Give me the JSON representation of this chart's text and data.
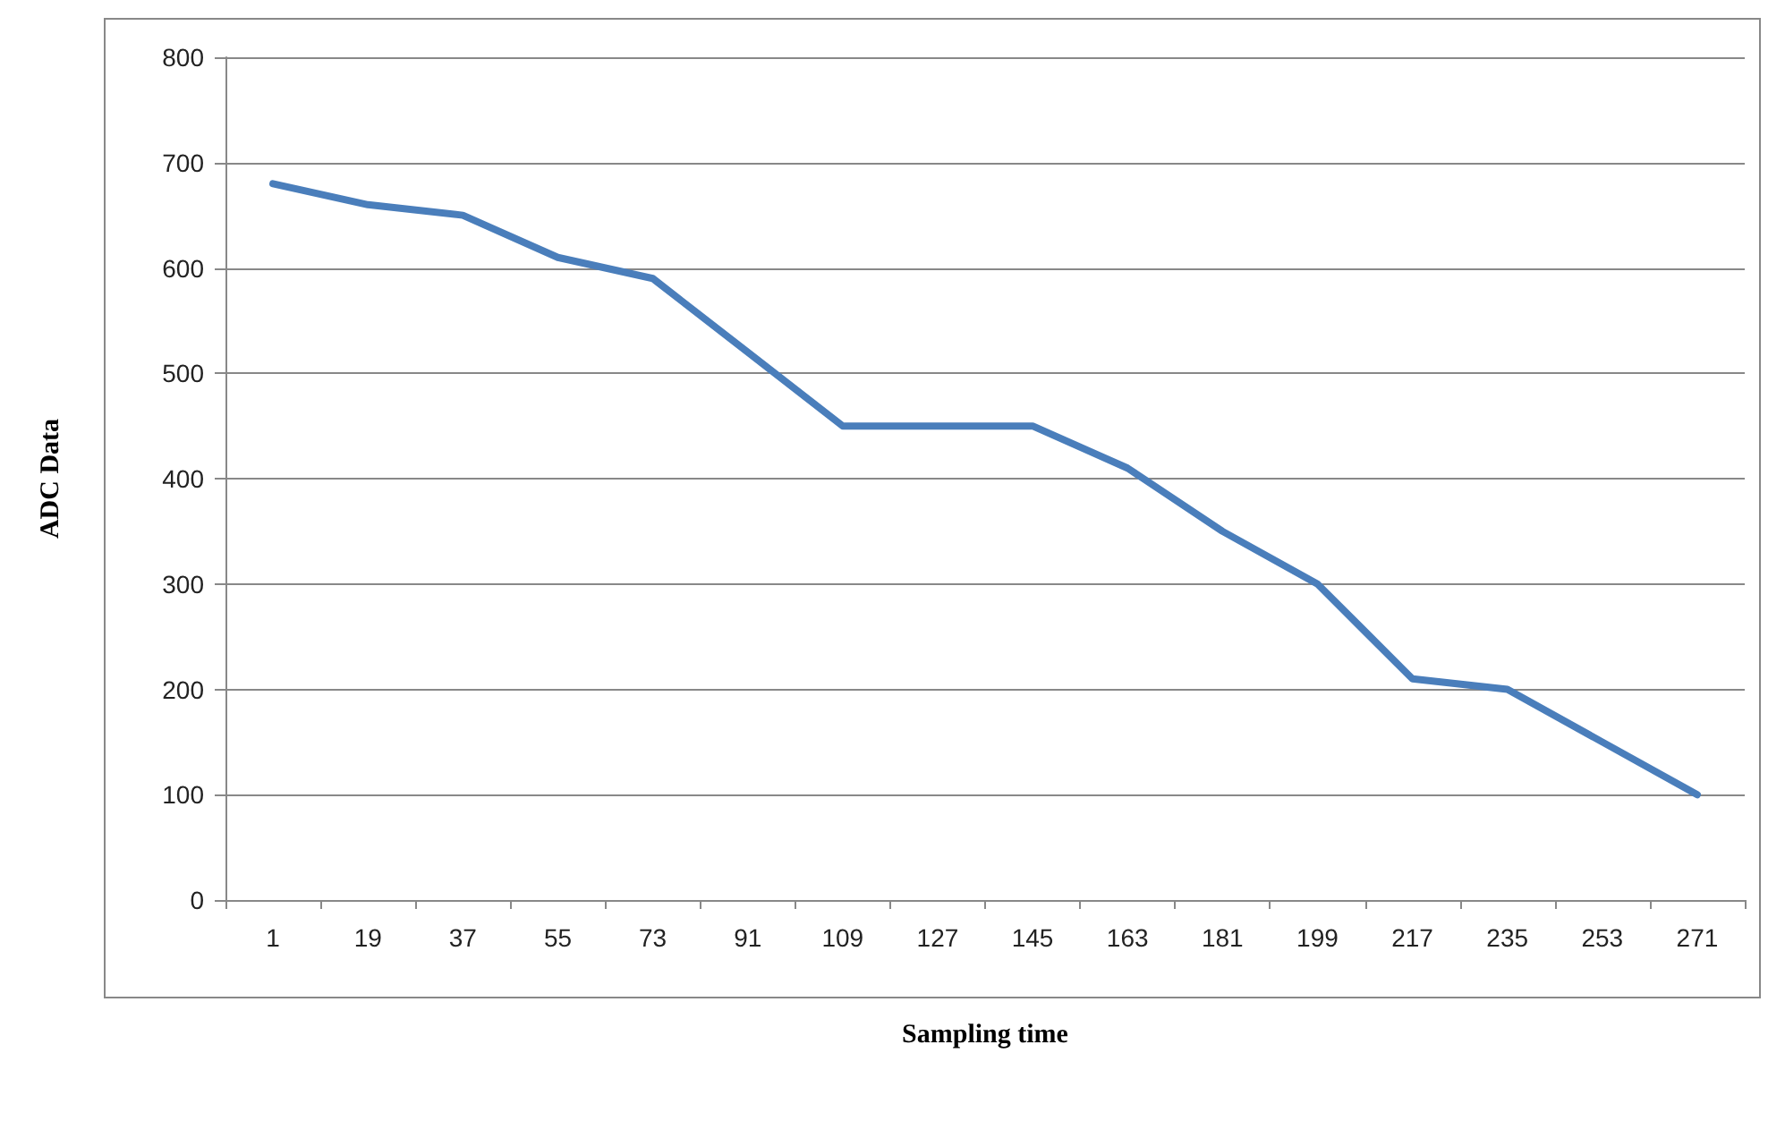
{
  "chart_data": {
    "type": "line",
    "xlabel": "Sampling time",
    "ylabel": "ADC Data",
    "categories": [
      "1",
      "19",
      "37",
      "55",
      "73",
      "91",
      "109",
      "127",
      "145",
      "163",
      "181",
      "199",
      "217",
      "235",
      "253",
      "271"
    ],
    "series": [
      {
        "color": "#4a7ebb",
        "values": [
          680,
          660,
          650,
          610,
          590,
          520,
          450,
          450,
          450,
          410,
          350,
          300,
          210,
          200,
          150,
          100
        ]
      }
    ],
    "ylim": [
      0,
      800
    ],
    "yticks": [
      0,
      100,
      200,
      300,
      400,
      500,
      600,
      700,
      800
    ],
    "grid": "y",
    "marker": "none",
    "line_style": "solid"
  }
}
